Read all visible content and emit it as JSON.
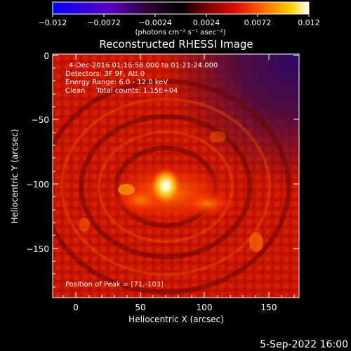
{
  "colorbar": {
    "ticks": [
      "−0.012",
      "−0.0072",
      "−0.0024",
      "0.0024",
      "0.0072",
      "0.012"
    ],
    "unit_label": "(photons cm⁻² s⁻¹ asec⁻²)"
  },
  "title": "Reconstructed RHESSI Image",
  "annotations": {
    "time_range": "4-Dec-2016 01:16:56.000 to 01:21:24.000",
    "detectors": "Detectors: 3F 9F, Att 0",
    "energy_range": "Energy Range: 6.0 - 12.0 keV",
    "method_counts": "Clean     Total counts: 1.15E+04",
    "peak": "Position of Peak = [71,-103]"
  },
  "axes": {
    "xlabel": "Heliocentric X (arcsec)",
    "ylabel": "Heliocentric Y (arcsec)",
    "xticks": [
      "0",
      "50",
      "100",
      "150"
    ],
    "yticks": [
      "0",
      "−50",
      "−100",
      "−150"
    ],
    "xrange": [
      -18,
      173
    ],
    "yrange": [
      -188,
      2
    ]
  },
  "image": {
    "peak_position": [
      71,
      -103
    ],
    "colormap": "hot-with-blue-negative"
  },
  "footer": {
    "date": "5-Sep-2022 16:00"
  }
}
